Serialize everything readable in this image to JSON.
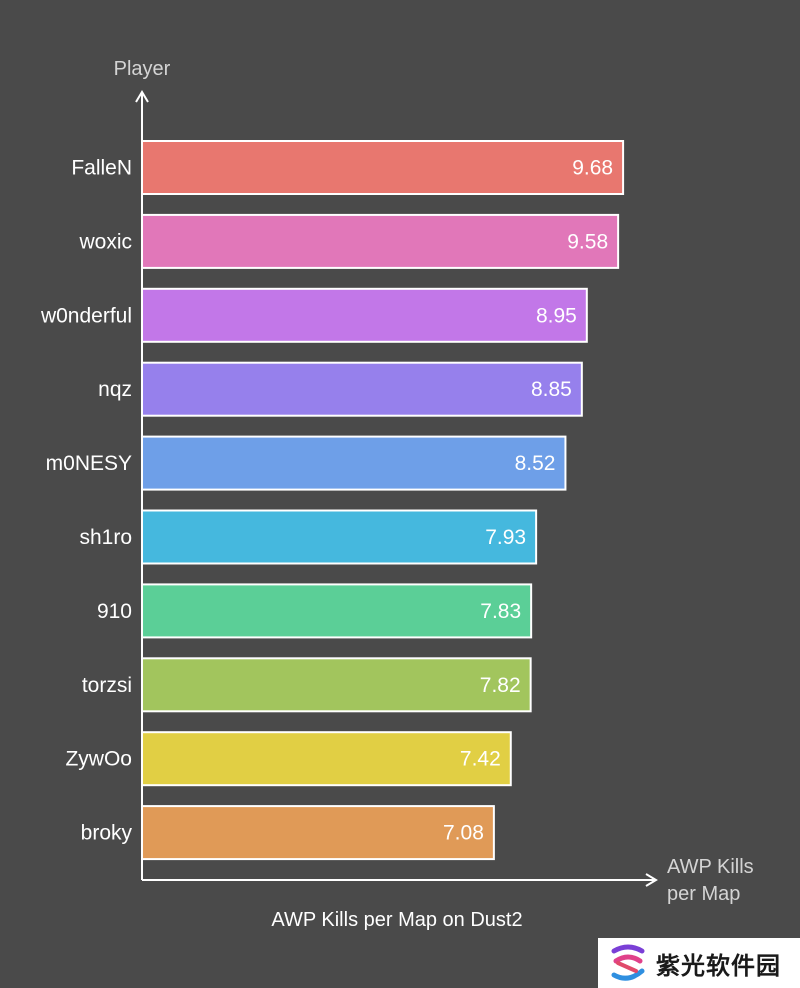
{
  "chart_data": {
    "type": "bar",
    "orientation": "horizontal",
    "title": "AWP Kills per Map on Dust2",
    "ylabel": "Player",
    "xlabel_lines": [
      "AWP Kills",
      "per Map"
    ],
    "categories": [
      "FalleN",
      "woxic",
      "w0nderful",
      "nqz",
      "m0NESY",
      "sh1ro",
      "910",
      "torzsi",
      "ZywOo",
      "broky"
    ],
    "values": [
      9.68,
      9.58,
      8.95,
      8.85,
      8.52,
      7.93,
      7.83,
      7.82,
      7.42,
      7.08
    ],
    "value_labels": [
      "9.68",
      "9.58",
      "8.95",
      "8.85",
      "8.52",
      "7.93",
      "7.83",
      "7.82",
      "7.42",
      "7.08"
    ],
    "colors": [
      "#e8776f",
      "#e177b9",
      "#c277e8",
      "#9680ec",
      "#6e9fe8",
      "#45b8de",
      "#5bcf97",
      "#a2c55d",
      "#e1cf44",
      "#e09a57"
    ],
    "xlim": [
      0,
      10
    ],
    "grid": false,
    "legend": "none"
  },
  "watermark": {
    "text": "紫光软件园"
  }
}
